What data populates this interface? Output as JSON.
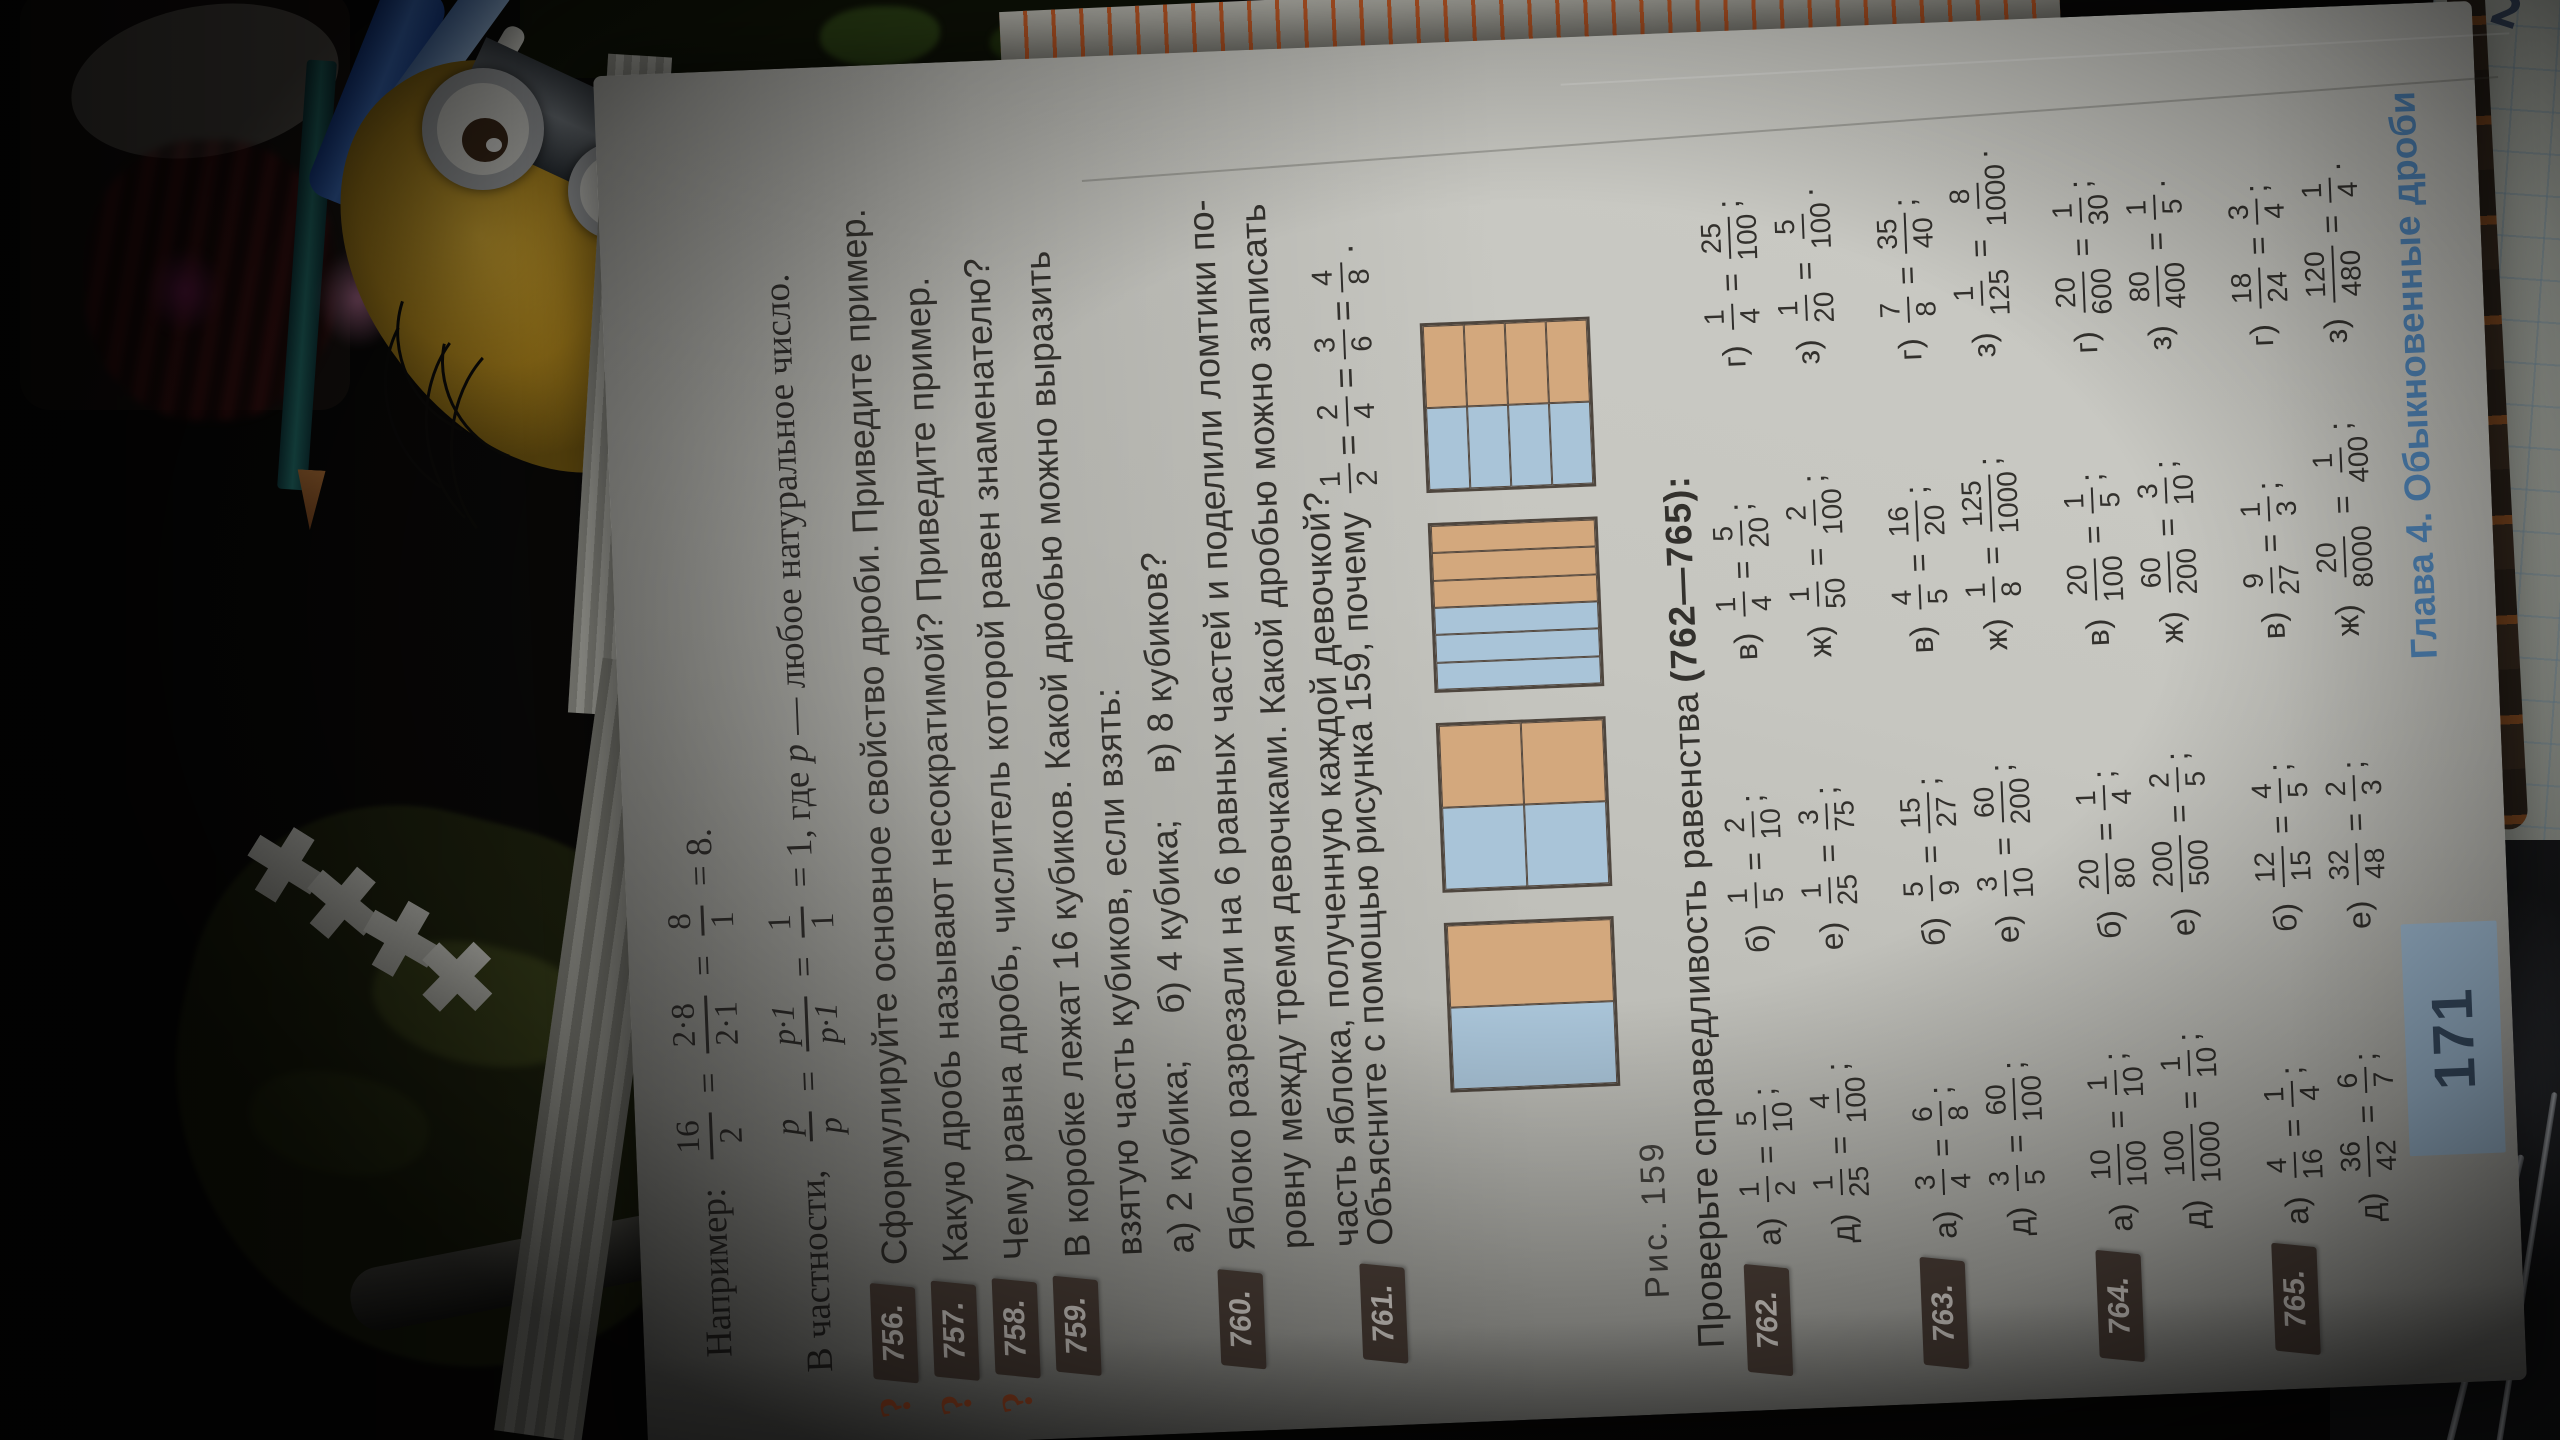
{
  "scene": {
    "background_items": [
      "minion-toy",
      "mug",
      "teal-pencil",
      "blue-pen",
      "white-stick",
      "pink-blob",
      "magenta-blob",
      "white-cross-beads",
      "olive-leaf-cloth",
      "grey-pen",
      "ruler",
      "graph-notebook",
      "striped-rod",
      "silver-fabric",
      "page-stack-edges"
    ],
    "notebook_scribble": "2"
  },
  "page": {
    "examples": {
      "line1": [
        {
          "t": "Например:  "
        },
        {
          "f": [
            "16",
            "2"
          ]
        },
        {
          "t": " = "
        },
        {
          "f": [
            "2·8",
            "2·1"
          ]
        },
        {
          "t": " = "
        },
        {
          "f": [
            "8",
            "1"
          ]
        },
        {
          "t": " = 8."
        }
      ],
      "line2": [
        {
          "t": "В частности,  "
        },
        {
          "f": [
            "p",
            "p"
          ],
          "v": 1
        },
        {
          "t": " = "
        },
        {
          "f": [
            "p·1",
            "p·1"
          ],
          "v": 1
        },
        {
          "t": " = "
        },
        {
          "f": [
            "1",
            "1"
          ]
        },
        {
          "t": " = 1, где "
        },
        {
          "t": "p",
          "v": 1
        },
        {
          "t": " — любое натуральное число."
        }
      ]
    },
    "problems_text": [
      {
        "badge": "756.",
        "hook": true,
        "lines": [
          "Сформулируйте основное свойство дроби. Приведите пример."
        ]
      },
      {
        "badge": "757.",
        "hook": true,
        "lines": [
          "Какую дробь называют несократимой? Приведите пример."
        ]
      },
      {
        "badge": "758.",
        "hook": true,
        "lines": [
          "Чему равна дробь, числитель которой равен знаменателю?"
        ]
      },
      {
        "badge": "759.",
        "hook": false,
        "lines": [
          "В коробке лежат 16 кубиков. Какой дробью можно выразить",
          "взятую часть кубиков, если взять:",
          "а) 2 кубика;  б) 4 кубика;  в) 8 кубиков?"
        ]
      },
      {
        "badge": "760.",
        "hook": false,
        "lines": [
          "Яблоко разрезали на 6 равных частей и поделили ломтики по-",
          "ровну между тремя девочками. Какой дробью можно записать",
          "часть яблока, полученную каждой девочкой?"
        ]
      }
    ],
    "p761": {
      "badge": "761.",
      "tokens": [
        {
          "t": "Объясните с помощью рисунка 159, почему "
        },
        {
          "f": [
            "1",
            "2"
          ]
        },
        {
          "t": "="
        },
        {
          "f": [
            "2",
            "4"
          ]
        },
        {
          "t": "="
        },
        {
          "f": [
            "3",
            "6"
          ]
        },
        {
          "t": "="
        },
        {
          "f": [
            "4",
            "8"
          ]
        },
        {
          "t": "."
        }
      ]
    },
    "figure": {
      "caption": "Рис. 159",
      "colors": {
        "left_half": "#a9c4d8",
        "right_half": "#d3a87d",
        "border": "#55493f"
      },
      "squares": [
        {
          "cols": 2,
          "rows": 1
        },
        {
          "cols": 2,
          "rows": 2
        },
        {
          "cols": 6,
          "rows": 1
        },
        {
          "cols": 2,
          "rows": 4
        }
      ]
    },
    "check_heading": {
      "normal": "Проверьте справедливость равенства ",
      "bold": "(762—765):"
    },
    "check_problems": [
      {
        "badge": "762.",
        "items": [
          [
            "а)",
            "1",
            "2",
            "5",
            "10",
            ";"
          ],
          [
            "б)",
            "1",
            "5",
            "2",
            "10",
            ";"
          ],
          [
            "в)",
            "1",
            "4",
            "5",
            "20",
            ";"
          ],
          [
            "г)",
            "1",
            "4",
            "25",
            "100",
            ";"
          ],
          [
            "д)",
            "1",
            "25",
            "4",
            "100",
            ";"
          ],
          [
            "е)",
            "1",
            "25",
            "3",
            "75",
            ";"
          ],
          [
            "ж)",
            "1",
            "50",
            "2",
            "100",
            ";"
          ],
          [
            "з)",
            "1",
            "20",
            "5",
            "100",
            "."
          ]
        ]
      },
      {
        "badge": "763.",
        "items": [
          [
            "а)",
            "3",
            "4",
            "6",
            "8",
            ";"
          ],
          [
            "б)",
            "5",
            "9",
            "15",
            "27",
            ";"
          ],
          [
            "в)",
            "4",
            "5",
            "16",
            "20",
            ";"
          ],
          [
            "г)",
            "7",
            "8",
            "35",
            "40",
            ";"
          ],
          [
            "д)",
            "3",
            "5",
            "60",
            "100",
            ";"
          ],
          [
            "е)",
            "3",
            "10",
            "60",
            "200",
            ";"
          ],
          [
            "ж)",
            "1",
            "8",
            "125",
            "1000",
            ";"
          ],
          [
            "з)",
            "1",
            "125",
            "8",
            "1000",
            "."
          ]
        ]
      },
      {
        "badge": "764.",
        "items": [
          [
            "а)",
            "10",
            "100",
            "1",
            "10",
            ";"
          ],
          [
            "б)",
            "20",
            "80",
            "1",
            "4",
            ";"
          ],
          [
            "в)",
            "20",
            "100",
            "1",
            "5",
            ";"
          ],
          [
            "г)",
            "20",
            "600",
            "1",
            "30",
            ";"
          ],
          [
            "д)",
            "100",
            "1000",
            "1",
            "10",
            ";"
          ],
          [
            "е)",
            "200",
            "500",
            "2",
            "5",
            ";"
          ],
          [
            "ж)",
            "60",
            "200",
            "3",
            "10",
            ";"
          ],
          [
            "з)",
            "80",
            "400",
            "1",
            "5",
            "."
          ]
        ]
      },
      {
        "badge": "765.",
        "items": [
          [
            "а)",
            "4",
            "16",
            "1",
            "4",
            ";"
          ],
          [
            "б)",
            "12",
            "15",
            "4",
            "5",
            ";"
          ],
          [
            "в)",
            "9",
            "27",
            "1",
            "3",
            ";"
          ],
          [
            "г)",
            "18",
            "24",
            "3",
            "4",
            ";"
          ],
          [
            "д)",
            "36",
            "42",
            "6",
            "7",
            ";"
          ],
          [
            "е)",
            "32",
            "48",
            "2",
            "3",
            ";"
          ],
          [
            "ж)",
            "20",
            "8000",
            "1",
            "400",
            ";"
          ],
          [
            "з)",
            "120",
            "480",
            "1",
            "4",
            "."
          ]
        ]
      }
    ],
    "footer": {
      "page_number": "171",
      "chapter": "Глава 4. Обыкновенные дроби"
    }
  }
}
